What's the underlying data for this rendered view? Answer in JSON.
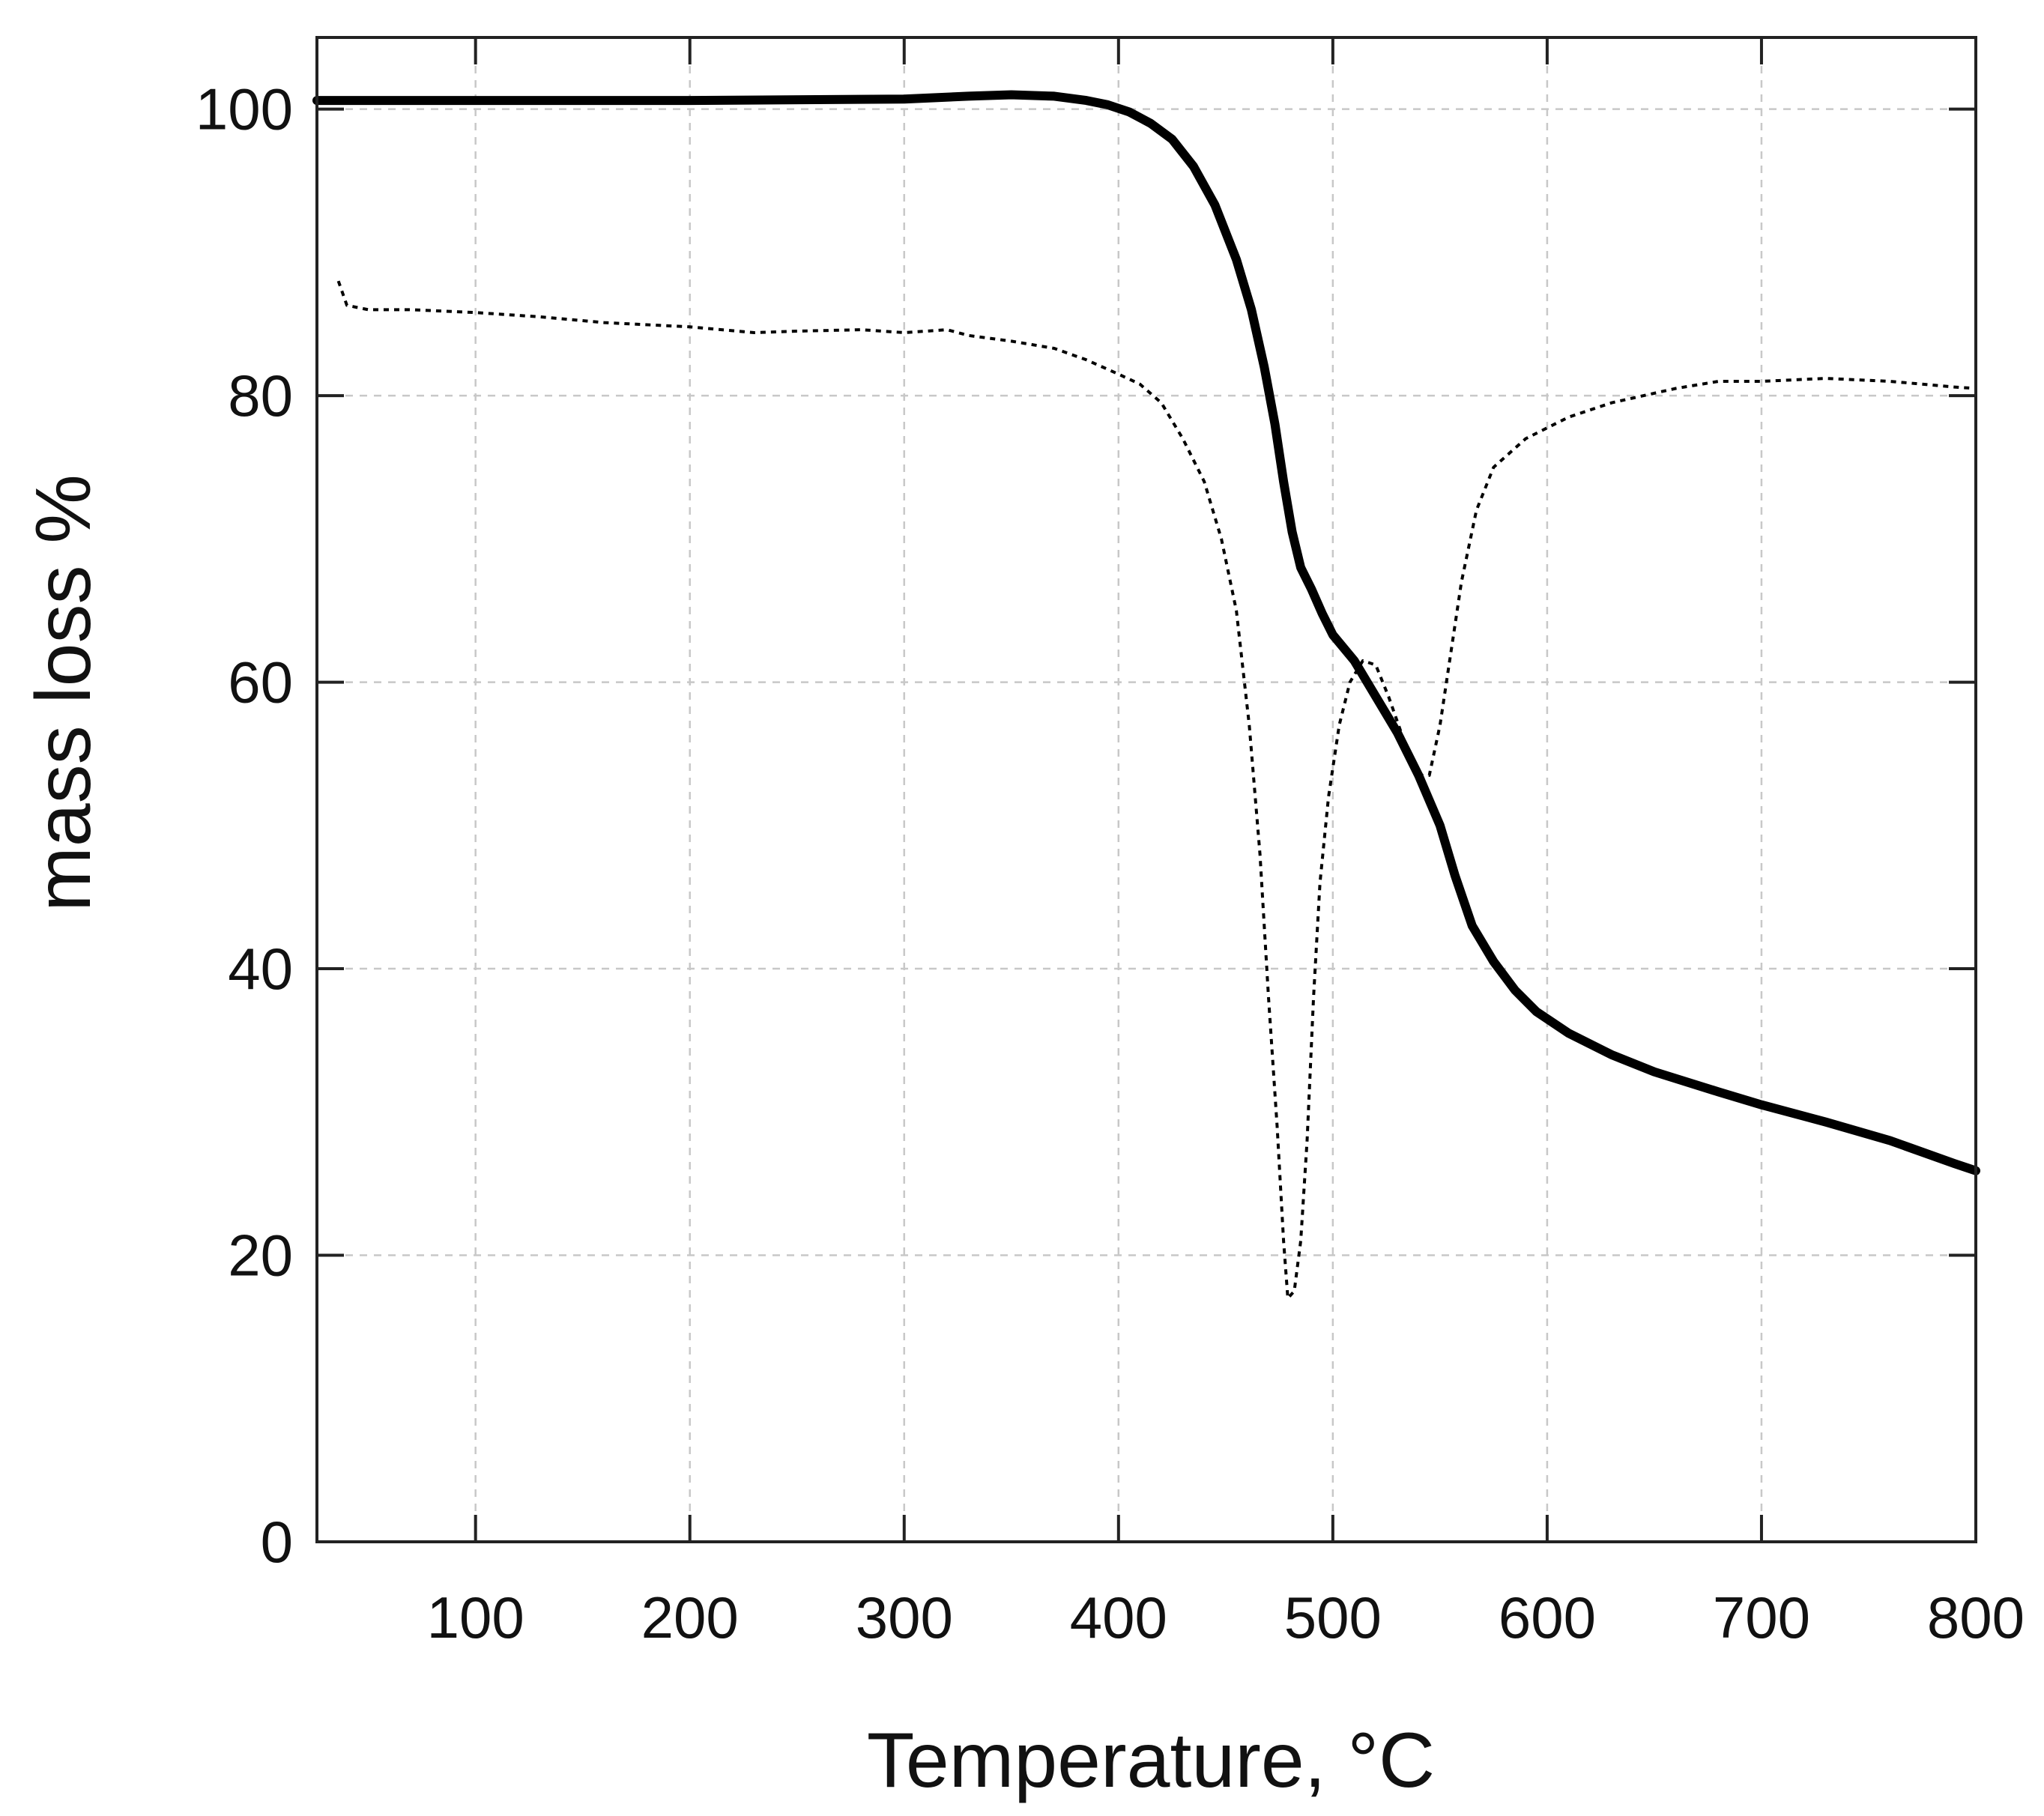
{
  "chart_data": {
    "type": "line",
    "xlabel": "Temperature, °C",
    "ylabel": "mass loss %",
    "xlim": [
      26,
      800
    ],
    "ylim": [
      0,
      105
    ],
    "x_ticks": [
      100,
      200,
      300,
      400,
      500,
      600,
      700,
      800
    ],
    "y_ticks": [
      0,
      20,
      40,
      60,
      80,
      100
    ],
    "grid": true,
    "series": [
      {
        "style": "solid-thick",
        "color": "#000000",
        "points": [
          [
            26,
            100.6
          ],
          [
            100,
            100.6
          ],
          [
            200,
            100.6
          ],
          [
            300,
            100.7
          ],
          [
            330,
            100.9
          ],
          [
            350,
            101.0
          ],
          [
            370,
            100.9
          ],
          [
            385,
            100.6
          ],
          [
            395,
            100.3
          ],
          [
            405,
            99.8
          ],
          [
            415,
            99.0
          ],
          [
            425,
            97.9
          ],
          [
            435,
            96.0
          ],
          [
            445,
            93.3
          ],
          [
            455,
            89.5
          ],
          [
            462,
            86.0
          ],
          [
            468,
            82.0
          ],
          [
            473,
            78.0
          ],
          [
            477,
            74.0
          ],
          [
            481,
            70.5
          ],
          [
            485,
            68.0
          ],
          [
            490,
            66.5
          ],
          [
            495,
            64.8
          ],
          [
            500,
            63.3
          ],
          [
            510,
            61.5
          ],
          [
            520,
            59.0
          ],
          [
            530,
            56.5
          ],
          [
            540,
            53.5
          ],
          [
            550,
            50.0
          ],
          [
            557,
            46.5
          ],
          [
            565,
            43.0
          ],
          [
            575,
            40.5
          ],
          [
            585,
            38.5
          ],
          [
            595,
            37.0
          ],
          [
            610,
            35.5
          ],
          [
            630,
            34.0
          ],
          [
            650,
            32.8
          ],
          [
            680,
            31.4
          ],
          [
            700,
            30.5
          ],
          [
            730,
            29.3
          ],
          [
            760,
            28.0
          ],
          [
            790,
            26.4
          ],
          [
            800,
            25.9
          ]
        ]
      },
      {
        "style": "dotted",
        "color": "#000000",
        "points": [
          [
            36,
            88.0
          ],
          [
            40,
            86.3
          ],
          [
            50,
            86.0
          ],
          [
            70,
            86.0
          ],
          [
            100,
            85.8
          ],
          [
            130,
            85.5
          ],
          [
            160,
            85.1
          ],
          [
            200,
            84.8
          ],
          [
            230,
            84.4
          ],
          [
            250,
            84.5
          ],
          [
            280,
            84.6
          ],
          [
            300,
            84.4
          ],
          [
            320,
            84.6
          ],
          [
            330,
            84.2
          ],
          [
            350,
            83.8
          ],
          [
            370,
            83.3
          ],
          [
            385,
            82.5
          ],
          [
            400,
            81.5
          ],
          [
            410,
            80.8
          ],
          [
            420,
            79.5
          ],
          [
            430,
            77.0
          ],
          [
            440,
            74.0
          ],
          [
            448,
            70.0
          ],
          [
            455,
            65.0
          ],
          [
            461,
            57.0
          ],
          [
            466,
            48.0
          ],
          [
            470,
            38.0
          ],
          [
            474,
            29.0
          ],
          [
            477,
            21.0
          ],
          [
            479,
            17.0
          ],
          [
            482,
            17.5
          ],
          [
            485,
            21.0
          ],
          [
            488,
            28.0
          ],
          [
            491,
            38.0
          ],
          [
            494,
            46.0
          ],
          [
            498,
            52.0
          ],
          [
            503,
            57.0
          ],
          [
            508,
            60.0
          ],
          [
            514,
            61.5
          ],
          [
            520,
            61.2
          ],
          [
            526,
            59.0
          ],
          [
            533,
            56.0
          ],
          [
            540,
            53.5
          ],
          [
            545,
            53.5
          ],
          [
            550,
            57.0
          ],
          [
            555,
            62.0
          ],
          [
            560,
            67.0
          ],
          [
            567,
            72.0
          ],
          [
            575,
            75.0
          ],
          [
            590,
            77.0
          ],
          [
            610,
            78.5
          ],
          [
            630,
            79.5
          ],
          [
            660,
            80.5
          ],
          [
            680,
            81.0
          ],
          [
            700,
            81.0
          ],
          [
            730,
            81.2
          ],
          [
            760,
            81.0
          ],
          [
            790,
            80.6
          ],
          [
            800,
            80.5
          ]
        ]
      }
    ]
  }
}
